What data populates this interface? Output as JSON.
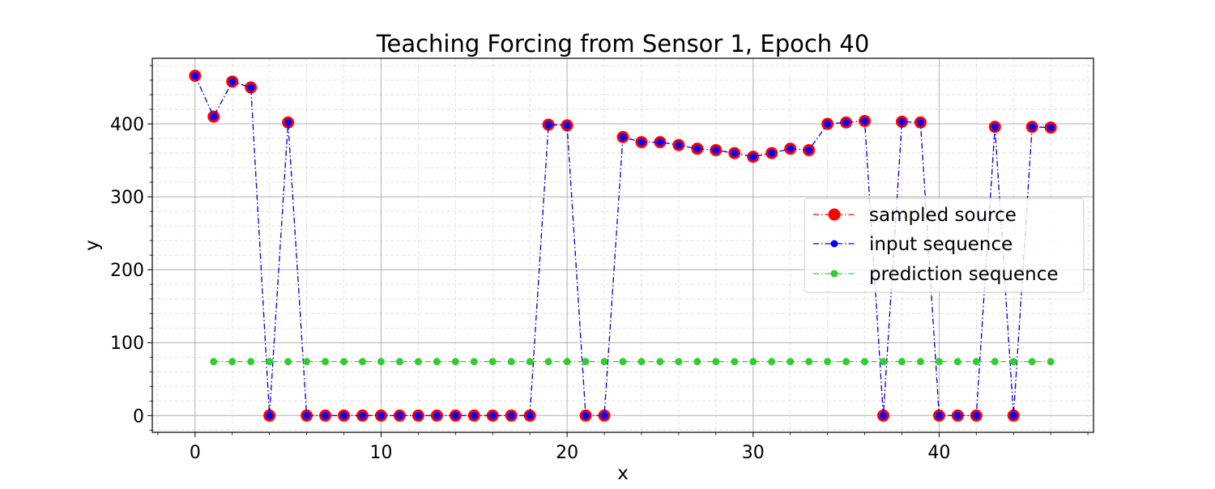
{
  "chart_data": {
    "type": "line",
    "title": "Teaching Forcing from Sensor 1, Epoch 40",
    "xlabel": "x",
    "ylabel": "y",
    "xlim": [
      -2.3,
      48.3
    ],
    "ylim": [
      -23,
      490
    ],
    "x_ticks": [
      0,
      10,
      20,
      30,
      40
    ],
    "y_ticks": [
      0,
      100,
      200,
      300,
      400
    ],
    "x_tick_labels": [
      "0",
      "10",
      "20",
      "30",
      "40"
    ],
    "y_tick_labels": [
      "0",
      "100",
      "200",
      "300",
      "400"
    ],
    "grid": true,
    "minor_grid": true,
    "legend_position": "center-right",
    "series": [
      {
        "name": "sampled source",
        "color": "#ff0000",
        "marker": "large-circle",
        "linestyle": "dash-dot",
        "x": [
          0,
          1,
          2,
          3,
          4,
          5,
          6,
          7,
          8,
          9,
          10,
          11,
          12,
          13,
          14,
          15,
          16,
          17,
          18,
          19,
          20,
          21,
          22,
          23,
          24,
          25,
          26,
          27,
          28,
          29,
          30,
          31,
          32,
          33,
          34,
          35,
          36,
          37,
          38,
          39,
          40,
          41,
          42,
          43,
          44,
          45,
          46
        ],
        "values": [
          466,
          410,
          458,
          450,
          0,
          402,
          0,
          0,
          0,
          0,
          0,
          0,
          0,
          0,
          0,
          0,
          0,
          0,
          0,
          399,
          398,
          0,
          0,
          382,
          375,
          375,
          371,
          366,
          364,
          360,
          355,
          360,
          366,
          364,
          400,
          402,
          404,
          0,
          403,
          402,
          0,
          0,
          0,
          396,
          0,
          396,
          395
        ]
      },
      {
        "name": "input sequence",
        "color": "#0000ff",
        "marker": "circle",
        "linestyle": "dash-dot",
        "x": [
          0,
          1,
          2,
          3,
          4,
          5,
          6,
          7,
          8,
          9,
          10,
          11,
          12,
          13,
          14,
          15,
          16,
          17,
          18,
          19,
          20,
          21,
          22,
          23,
          24,
          25,
          26,
          27,
          28,
          29,
          30,
          31,
          32,
          33,
          34,
          35,
          36,
          37,
          38,
          39,
          40,
          41,
          42,
          43,
          44,
          45,
          46
        ],
        "values": [
          466,
          410,
          458,
          450,
          0,
          402,
          0,
          0,
          0,
          0,
          0,
          0,
          0,
          0,
          0,
          0,
          0,
          0,
          0,
          399,
          398,
          0,
          0,
          382,
          375,
          375,
          371,
          366,
          364,
          360,
          355,
          360,
          366,
          364,
          400,
          402,
          404,
          0,
          403,
          402,
          0,
          0,
          0,
          396,
          0,
          396,
          395
        ]
      },
      {
        "name": "prediction sequence",
        "color": "#32cd32",
        "marker": "circle",
        "linestyle": "dash-dot",
        "x": [
          1,
          2,
          3,
          4,
          5,
          6,
          7,
          8,
          9,
          10,
          11,
          12,
          13,
          14,
          15,
          16,
          17,
          18,
          19,
          20,
          21,
          22,
          23,
          24,
          25,
          26,
          27,
          28,
          29,
          30,
          31,
          32,
          33,
          34,
          35,
          36,
          37,
          38,
          39,
          40,
          41,
          42,
          43,
          44,
          45,
          46
        ],
        "values": [
          74,
          74,
          74,
          74,
          74,
          74,
          74,
          74,
          74,
          74,
          74,
          74,
          74,
          74,
          74,
          74,
          74,
          74,
          74,
          74,
          74,
          74,
          74,
          74,
          74,
          74,
          74,
          74,
          74,
          74,
          74,
          74,
          74,
          74,
          74,
          74,
          74,
          74,
          74,
          74,
          74,
          74,
          74,
          74,
          74,
          74
        ]
      }
    ]
  }
}
